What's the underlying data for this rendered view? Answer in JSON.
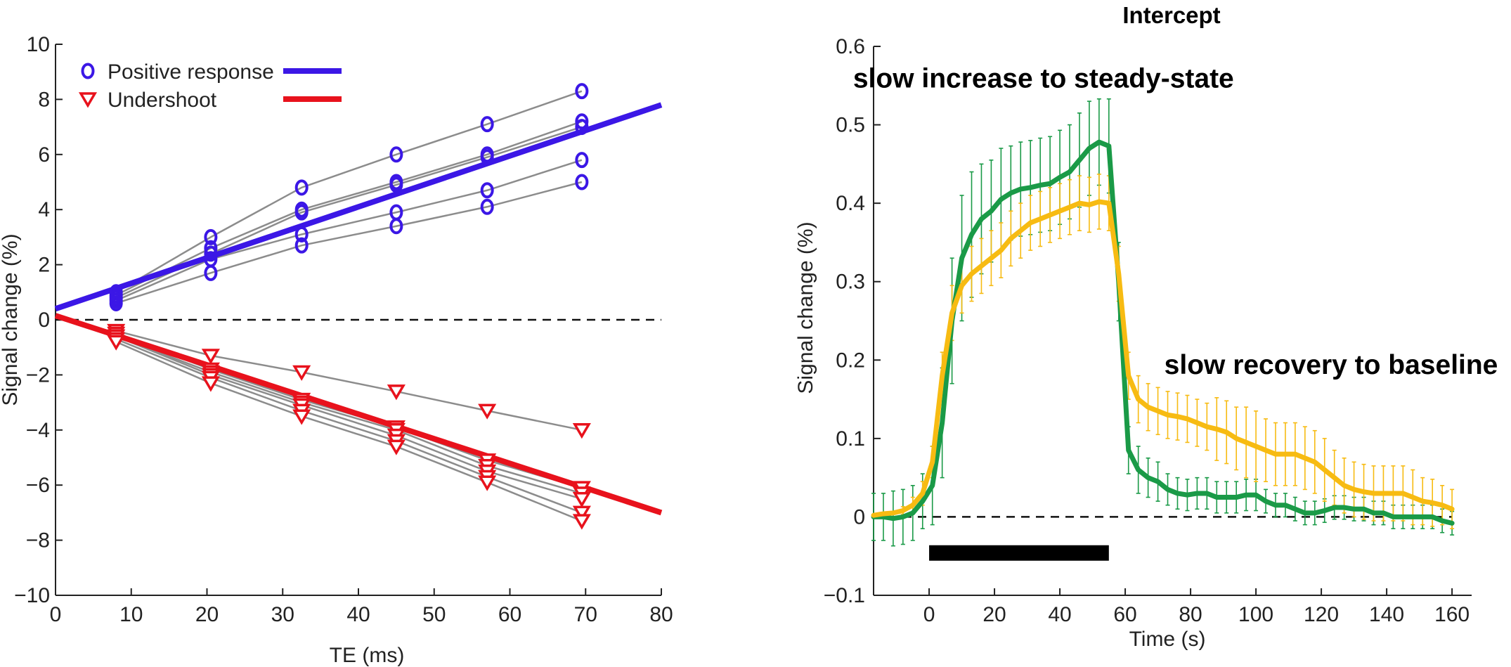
{
  "colors": {
    "positive": "#3b17e6",
    "undershoot": "#e8121c",
    "green": "#1a9a47",
    "yellow": "#f7bb12",
    "subject_line": "#8c8c8c",
    "axis": "#222222"
  },
  "chart_data": [
    {
      "type": "scatter",
      "title": "",
      "xlabel": "TE (ms)",
      "ylabel": "Signal change (%)",
      "xlim": [
        0,
        80
      ],
      "ylim": [
        -10,
        10
      ],
      "xticks": [
        0,
        10,
        20,
        30,
        40,
        50,
        60,
        70,
        80
      ],
      "yticks": [
        -10,
        -8,
        -6,
        -4,
        -2,
        0,
        2,
        4,
        6,
        8,
        10
      ],
      "ytick_labels": [
        "−10",
        "−8",
        "−6",
        "−4",
        "−2",
        "0",
        "2",
        "4",
        "6",
        "8",
        "10"
      ],
      "x_positions": [
        8,
        20.5,
        32.5,
        45,
        57,
        69.5
      ],
      "legend": [
        {
          "name": "Positive response",
          "marker": "circle",
          "color_key": "positive"
        },
        {
          "name": "Undershoot",
          "marker": "triangle",
          "color_key": "undershoot"
        }
      ],
      "fit_lines": [
        {
          "name": "Positive response",
          "x": [
            0,
            80
          ],
          "y": [
            0.4,
            7.8
          ]
        },
        {
          "name": "Undershoot",
          "x": [
            0,
            80
          ],
          "y": [
            0.15,
            -7.0
          ]
        }
      ],
      "positive_subjects": [
        [
          1.0,
          3.0,
          4.8,
          6.0,
          7.1,
          8.3
        ],
        [
          0.9,
          2.6,
          4.0,
          5.0,
          6.0,
          7.2
        ],
        [
          0.8,
          2.4,
          3.9,
          4.9,
          5.9,
          7.0
        ],
        [
          0.7,
          2.2,
          3.1,
          3.9,
          4.7,
          5.8
        ],
        [
          0.6,
          1.7,
          2.7,
          3.4,
          4.1,
          5.0
        ]
      ],
      "undershoot_subjects": [
        [
          -0.4,
          -1.3,
          -1.9,
          -2.6,
          -3.3,
          -4.0
        ],
        [
          -0.5,
          -1.8,
          -2.9,
          -3.9,
          -5.1,
          -6.1
        ],
        [
          -0.6,
          -1.9,
          -3.0,
          -4.0,
          -5.3,
          -6.3
        ],
        [
          -0.6,
          -2.0,
          -3.1,
          -4.2,
          -5.5,
          -6.5
        ],
        [
          -0.7,
          -2.1,
          -3.3,
          -4.4,
          -5.7,
          -7.0
        ],
        [
          -0.8,
          -2.3,
          -3.5,
          -4.6,
          -5.9,
          -7.3
        ]
      ],
      "reference_line_y": 0
    },
    {
      "type": "line",
      "title": "Intercept",
      "xlabel": "Time (s)",
      "ylabel": "Signal change (%)",
      "xlim": [
        -17,
        166
      ],
      "ylim": [
        -0.1,
        0.6
      ],
      "xticks": [
        0,
        20,
        40,
        60,
        80,
        100,
        120,
        140,
        160
      ],
      "yticks": [
        -0.1,
        0,
        0.1,
        0.2,
        0.3,
        0.4,
        0.5,
        0.6
      ],
      "ytick_labels": [
        "−0.1",
        "0",
        "0.1",
        "0.2",
        "0.3",
        "0.4",
        "0.5",
        "0.6"
      ],
      "x": [
        -17,
        -14,
        -11,
        -8,
        -5,
        -2,
        1,
        4,
        7,
        10,
        13,
        16,
        19,
        22,
        25,
        28,
        31,
        34,
        37,
        40,
        43,
        46,
        49,
        52,
        55,
        58,
        61,
        64,
        67,
        70,
        73,
        76,
        79,
        82,
        85,
        88,
        91,
        94,
        97,
        100,
        103,
        106,
        109,
        112,
        115,
        118,
        121,
        124,
        127,
        130,
        133,
        136,
        139,
        142,
        145,
        148,
        151,
        154,
        157,
        160
      ],
      "series": [
        {
          "name": "green",
          "color_key": "green",
          "values": [
            0.0,
            0.0,
            -0.002,
            0.0,
            0.005,
            0.02,
            0.04,
            0.12,
            0.25,
            0.33,
            0.36,
            0.38,
            0.39,
            0.405,
            0.413,
            0.418,
            0.42,
            0.423,
            0.425,
            0.433,
            0.44,
            0.455,
            0.47,
            0.478,
            0.473,
            0.3,
            0.085,
            0.06,
            0.05,
            0.045,
            0.035,
            0.03,
            0.028,
            0.03,
            0.03,
            0.025,
            0.025,
            0.025,
            0.028,
            0.028,
            0.02,
            0.015,
            0.015,
            0.01,
            0.005,
            0.005,
            0.008,
            0.012,
            0.012,
            0.01,
            0.01,
            0.005,
            0.005,
            0.0,
            0.0,
            0.0,
            0.0,
            0.0,
            -0.005,
            -0.008
          ],
          "errors": [
            0.03,
            0.03,
            0.035,
            0.035,
            0.035,
            0.035,
            0.05,
            0.07,
            0.08,
            0.08,
            0.08,
            0.07,
            0.065,
            0.065,
            0.06,
            0.06,
            0.06,
            0.06,
            0.06,
            0.06,
            0.06,
            0.06,
            0.06,
            0.055,
            0.06,
            0.05,
            0.03,
            0.03,
            0.025,
            0.025,
            0.02,
            0.02,
            0.02,
            0.02,
            0.02,
            0.02,
            0.02,
            0.02,
            0.02,
            0.02,
            0.015,
            0.015,
            0.015,
            0.015,
            0.015,
            0.015,
            0.015,
            0.015,
            0.015,
            0.015,
            0.015,
            0.015,
            0.015,
            0.015,
            0.015,
            0.015,
            0.015,
            0.015,
            0.015,
            0.015
          ]
        },
        {
          "name": "yellow",
          "color_key": "yellow",
          "values": [
            0.002,
            0.004,
            0.005,
            0.008,
            0.015,
            0.03,
            0.07,
            0.18,
            0.26,
            0.295,
            0.31,
            0.32,
            0.33,
            0.34,
            0.355,
            0.365,
            0.375,
            0.38,
            0.385,
            0.39,
            0.395,
            0.4,
            0.398,
            0.402,
            0.4,
            0.31,
            0.18,
            0.15,
            0.14,
            0.135,
            0.13,
            0.128,
            0.125,
            0.12,
            0.115,
            0.112,
            0.108,
            0.1,
            0.095,
            0.09,
            0.085,
            0.08,
            0.08,
            0.08,
            0.075,
            0.07,
            0.06,
            0.05,
            0.04,
            0.035,
            0.032,
            0.03,
            0.03,
            0.03,
            0.03,
            0.025,
            0.02,
            0.018,
            0.015,
            0.01
          ],
          "errors": [
            0.0,
            0.0,
            0.0,
            0.005,
            0.01,
            0.015,
            0.02,
            0.03,
            0.035,
            0.035,
            0.035,
            0.035,
            0.035,
            0.035,
            0.035,
            0.035,
            0.035,
            0.035,
            0.035,
            0.035,
            0.035,
            0.035,
            0.035,
            0.035,
            0.035,
            0.035,
            0.03,
            0.03,
            0.03,
            0.03,
            0.03,
            0.03,
            0.03,
            0.03,
            0.03,
            0.04,
            0.04,
            0.04,
            0.045,
            0.045,
            0.04,
            0.04,
            0.04,
            0.04,
            0.04,
            0.04,
            0.04,
            0.035,
            0.035,
            0.035,
            0.035,
            0.035,
            0.035,
            0.035,
            0.035,
            0.035,
            0.03,
            0.03,
            0.025,
            0.025
          ]
        }
      ],
      "stimulus_bar": {
        "x_start": 0,
        "x_end": 55,
        "y": -0.046
      },
      "reference_line_y": 0,
      "annotations": [
        {
          "text": "slow increase to steady-state",
          "x": 35,
          "y": 0.56
        },
        {
          "text": "slow recovery to baseline",
          "x": 123,
          "y": 0.195
        }
      ]
    }
  ]
}
